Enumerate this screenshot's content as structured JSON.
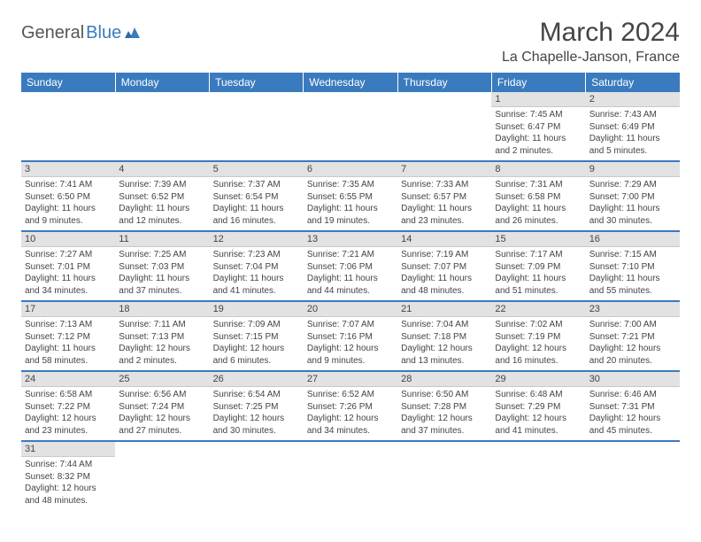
{
  "logo": {
    "part1": "General",
    "part2": "Blue"
  },
  "title": "March 2024",
  "location": "La Chapelle-Janson, France",
  "colors": {
    "header_bg": "#3a7bbf",
    "header_text": "#ffffff",
    "daynum_bg": "#e2e2e2",
    "row_border": "#3a7bbf",
    "body_text": "#444444",
    "page_bg": "#ffffff"
  },
  "weekdays": [
    "Sunday",
    "Monday",
    "Tuesday",
    "Wednesday",
    "Thursday",
    "Friday",
    "Saturday"
  ],
  "weeks": [
    [
      {
        "n": "",
        "sr": "",
        "ss": "",
        "dl": ""
      },
      {
        "n": "",
        "sr": "",
        "ss": "",
        "dl": ""
      },
      {
        "n": "",
        "sr": "",
        "ss": "",
        "dl": ""
      },
      {
        "n": "",
        "sr": "",
        "ss": "",
        "dl": ""
      },
      {
        "n": "",
        "sr": "",
        "ss": "",
        "dl": ""
      },
      {
        "n": "1",
        "sr": "Sunrise: 7:45 AM",
        "ss": "Sunset: 6:47 PM",
        "dl": "Daylight: 11 hours and 2 minutes."
      },
      {
        "n": "2",
        "sr": "Sunrise: 7:43 AM",
        "ss": "Sunset: 6:49 PM",
        "dl": "Daylight: 11 hours and 5 minutes."
      }
    ],
    [
      {
        "n": "3",
        "sr": "Sunrise: 7:41 AM",
        "ss": "Sunset: 6:50 PM",
        "dl": "Daylight: 11 hours and 9 minutes."
      },
      {
        "n": "4",
        "sr": "Sunrise: 7:39 AM",
        "ss": "Sunset: 6:52 PM",
        "dl": "Daylight: 11 hours and 12 minutes."
      },
      {
        "n": "5",
        "sr": "Sunrise: 7:37 AM",
        "ss": "Sunset: 6:54 PM",
        "dl": "Daylight: 11 hours and 16 minutes."
      },
      {
        "n": "6",
        "sr": "Sunrise: 7:35 AM",
        "ss": "Sunset: 6:55 PM",
        "dl": "Daylight: 11 hours and 19 minutes."
      },
      {
        "n": "7",
        "sr": "Sunrise: 7:33 AM",
        "ss": "Sunset: 6:57 PM",
        "dl": "Daylight: 11 hours and 23 minutes."
      },
      {
        "n": "8",
        "sr": "Sunrise: 7:31 AM",
        "ss": "Sunset: 6:58 PM",
        "dl": "Daylight: 11 hours and 26 minutes."
      },
      {
        "n": "9",
        "sr": "Sunrise: 7:29 AM",
        "ss": "Sunset: 7:00 PM",
        "dl": "Daylight: 11 hours and 30 minutes."
      }
    ],
    [
      {
        "n": "10",
        "sr": "Sunrise: 7:27 AM",
        "ss": "Sunset: 7:01 PM",
        "dl": "Daylight: 11 hours and 34 minutes."
      },
      {
        "n": "11",
        "sr": "Sunrise: 7:25 AM",
        "ss": "Sunset: 7:03 PM",
        "dl": "Daylight: 11 hours and 37 minutes."
      },
      {
        "n": "12",
        "sr": "Sunrise: 7:23 AM",
        "ss": "Sunset: 7:04 PM",
        "dl": "Daylight: 11 hours and 41 minutes."
      },
      {
        "n": "13",
        "sr": "Sunrise: 7:21 AM",
        "ss": "Sunset: 7:06 PM",
        "dl": "Daylight: 11 hours and 44 minutes."
      },
      {
        "n": "14",
        "sr": "Sunrise: 7:19 AM",
        "ss": "Sunset: 7:07 PM",
        "dl": "Daylight: 11 hours and 48 minutes."
      },
      {
        "n": "15",
        "sr": "Sunrise: 7:17 AM",
        "ss": "Sunset: 7:09 PM",
        "dl": "Daylight: 11 hours and 51 minutes."
      },
      {
        "n": "16",
        "sr": "Sunrise: 7:15 AM",
        "ss": "Sunset: 7:10 PM",
        "dl": "Daylight: 11 hours and 55 minutes."
      }
    ],
    [
      {
        "n": "17",
        "sr": "Sunrise: 7:13 AM",
        "ss": "Sunset: 7:12 PM",
        "dl": "Daylight: 11 hours and 58 minutes."
      },
      {
        "n": "18",
        "sr": "Sunrise: 7:11 AM",
        "ss": "Sunset: 7:13 PM",
        "dl": "Daylight: 12 hours and 2 minutes."
      },
      {
        "n": "19",
        "sr": "Sunrise: 7:09 AM",
        "ss": "Sunset: 7:15 PM",
        "dl": "Daylight: 12 hours and 6 minutes."
      },
      {
        "n": "20",
        "sr": "Sunrise: 7:07 AM",
        "ss": "Sunset: 7:16 PM",
        "dl": "Daylight: 12 hours and 9 minutes."
      },
      {
        "n": "21",
        "sr": "Sunrise: 7:04 AM",
        "ss": "Sunset: 7:18 PM",
        "dl": "Daylight: 12 hours and 13 minutes."
      },
      {
        "n": "22",
        "sr": "Sunrise: 7:02 AM",
        "ss": "Sunset: 7:19 PM",
        "dl": "Daylight: 12 hours and 16 minutes."
      },
      {
        "n": "23",
        "sr": "Sunrise: 7:00 AM",
        "ss": "Sunset: 7:21 PM",
        "dl": "Daylight: 12 hours and 20 minutes."
      }
    ],
    [
      {
        "n": "24",
        "sr": "Sunrise: 6:58 AM",
        "ss": "Sunset: 7:22 PM",
        "dl": "Daylight: 12 hours and 23 minutes."
      },
      {
        "n": "25",
        "sr": "Sunrise: 6:56 AM",
        "ss": "Sunset: 7:24 PM",
        "dl": "Daylight: 12 hours and 27 minutes."
      },
      {
        "n": "26",
        "sr": "Sunrise: 6:54 AM",
        "ss": "Sunset: 7:25 PM",
        "dl": "Daylight: 12 hours and 30 minutes."
      },
      {
        "n": "27",
        "sr": "Sunrise: 6:52 AM",
        "ss": "Sunset: 7:26 PM",
        "dl": "Daylight: 12 hours and 34 minutes."
      },
      {
        "n": "28",
        "sr": "Sunrise: 6:50 AM",
        "ss": "Sunset: 7:28 PM",
        "dl": "Daylight: 12 hours and 37 minutes."
      },
      {
        "n": "29",
        "sr": "Sunrise: 6:48 AM",
        "ss": "Sunset: 7:29 PM",
        "dl": "Daylight: 12 hours and 41 minutes."
      },
      {
        "n": "30",
        "sr": "Sunrise: 6:46 AM",
        "ss": "Sunset: 7:31 PM",
        "dl": "Daylight: 12 hours and 45 minutes."
      }
    ],
    [
      {
        "n": "31",
        "sr": "Sunrise: 7:44 AM",
        "ss": "Sunset: 8:32 PM",
        "dl": "Daylight: 12 hours and 48 minutes."
      },
      {
        "n": "",
        "sr": "",
        "ss": "",
        "dl": ""
      },
      {
        "n": "",
        "sr": "",
        "ss": "",
        "dl": ""
      },
      {
        "n": "",
        "sr": "",
        "ss": "",
        "dl": ""
      },
      {
        "n": "",
        "sr": "",
        "ss": "",
        "dl": ""
      },
      {
        "n": "",
        "sr": "",
        "ss": "",
        "dl": ""
      },
      {
        "n": "",
        "sr": "",
        "ss": "",
        "dl": ""
      }
    ]
  ]
}
